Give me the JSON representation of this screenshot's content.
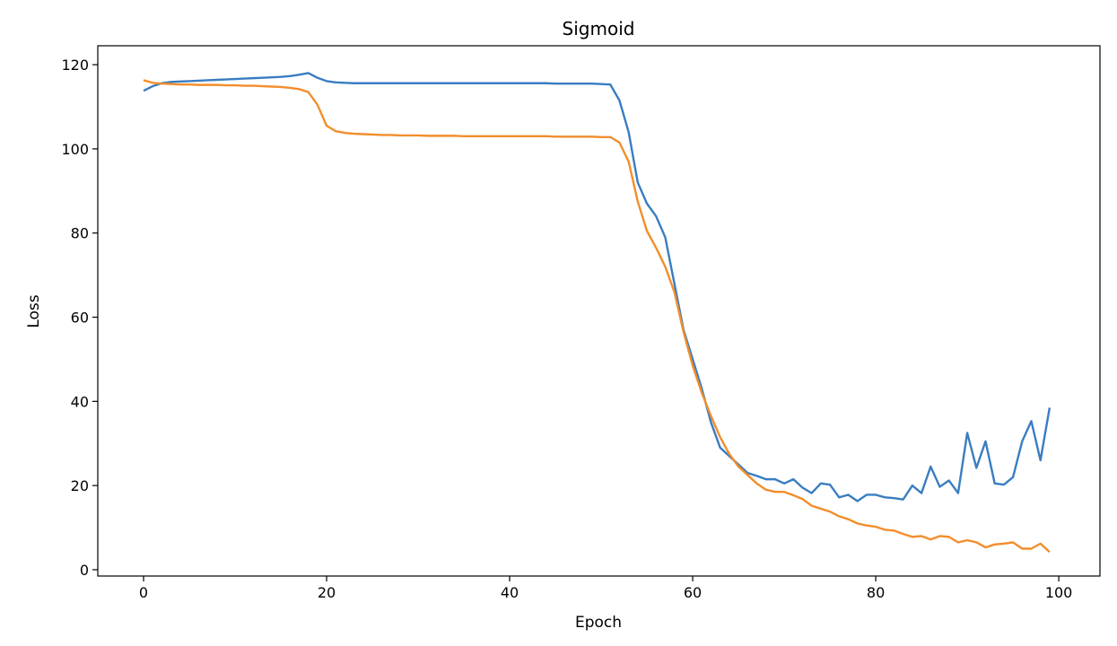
{
  "chart_data": {
    "type": "line",
    "title": "Sigmoid",
    "xlabel": "Epoch",
    "ylabel": "Loss",
    "xlim": [
      -5,
      104.5
    ],
    "ylim": [
      -1.5,
      124.5
    ],
    "xticks": [
      0,
      20,
      40,
      60,
      80,
      100
    ],
    "yticks": [
      0,
      20,
      40,
      60,
      80,
      100,
      120
    ],
    "grid": false,
    "x": [
      0,
      1,
      2,
      3,
      4,
      5,
      6,
      7,
      8,
      9,
      10,
      11,
      12,
      13,
      14,
      15,
      16,
      17,
      18,
      19,
      20,
      21,
      22,
      23,
      24,
      25,
      26,
      27,
      28,
      29,
      30,
      31,
      32,
      33,
      34,
      35,
      36,
      37,
      38,
      39,
      40,
      41,
      42,
      43,
      44,
      45,
      46,
      47,
      48,
      49,
      50,
      51,
      52,
      53,
      54,
      55,
      56,
      57,
      58,
      59,
      60,
      61,
      62,
      63,
      64,
      65,
      66,
      67,
      68,
      69,
      70,
      71,
      72,
      73,
      74,
      75,
      76,
      77,
      78,
      79,
      80,
      81,
      82,
      83,
      84,
      85,
      86,
      87,
      88,
      89,
      90,
      91,
      92,
      93,
      94,
      95,
      96,
      97,
      98,
      99
    ],
    "series": [
      {
        "color": "#3a7dc1",
        "values": [
          113.8,
          114.9,
          115.6,
          115.9,
          116.0,
          116.1,
          116.2,
          116.3,
          116.4,
          116.5,
          116.6,
          116.7,
          116.8,
          116.9,
          117.0,
          117.1,
          117.3,
          117.6,
          118.0,
          116.9,
          116.1,
          115.8,
          115.7,
          115.6,
          115.6,
          115.6,
          115.6,
          115.6,
          115.6,
          115.6,
          115.6,
          115.6,
          115.6,
          115.6,
          115.6,
          115.6,
          115.6,
          115.6,
          115.6,
          115.6,
          115.6,
          115.6,
          115.6,
          115.6,
          115.6,
          115.5,
          115.5,
          115.5,
          115.5,
          115.5,
          115.4,
          115.3,
          111.5,
          104.0,
          92.0,
          87.0,
          84.0,
          79.0,
          68.0,
          57.0,
          50.0,
          43.0,
          35.0,
          29.0,
          27.0,
          25.0,
          23.0,
          22.3,
          21.5,
          21.5,
          20.5,
          21.5,
          19.5,
          18.2,
          20.5,
          20.2,
          17.2,
          17.8,
          16.3,
          17.8,
          17.8,
          17.2,
          17.0,
          16.7,
          20.0,
          18.2,
          24.5,
          19.7,
          21.2,
          18.2,
          32.5,
          24.2,
          30.5,
          20.5,
          20.2,
          22.0,
          30.5,
          35.3,
          26.0,
          38.5
        ]
      },
      {
        "color": "#f28e2b",
        "values": [
          116.3,
          115.7,
          115.5,
          115.4,
          115.3,
          115.3,
          115.2,
          115.2,
          115.2,
          115.1,
          115.1,
          115.0,
          115.0,
          114.9,
          114.8,
          114.7,
          114.5,
          114.2,
          113.5,
          110.5,
          105.5,
          104.2,
          103.8,
          103.6,
          103.5,
          103.4,
          103.3,
          103.3,
          103.2,
          103.2,
          103.2,
          103.1,
          103.1,
          103.1,
          103.1,
          103.0,
          103.0,
          103.0,
          103.0,
          103.0,
          103.0,
          103.0,
          103.0,
          103.0,
          103.0,
          102.9,
          102.9,
          102.9,
          102.9,
          102.9,
          102.8,
          102.8,
          101.5,
          97.0,
          87.5,
          80.5,
          76.5,
          72.0,
          66.0,
          56.5,
          48.5,
          42.0,
          36.5,
          31.5,
          27.5,
          24.5,
          22.5,
          20.5,
          19.0,
          18.5,
          18.5,
          17.7,
          16.8,
          15.2,
          14.5,
          13.8,
          12.7,
          12.0,
          11.0,
          10.5,
          10.2,
          9.5,
          9.3,
          8.5,
          7.8,
          8.0,
          7.2,
          8.0,
          7.8,
          6.5,
          7.0,
          6.5,
          5.3,
          6.0,
          6.2,
          6.5,
          5.0,
          5.0,
          6.2,
          4.2
        ]
      }
    ]
  }
}
